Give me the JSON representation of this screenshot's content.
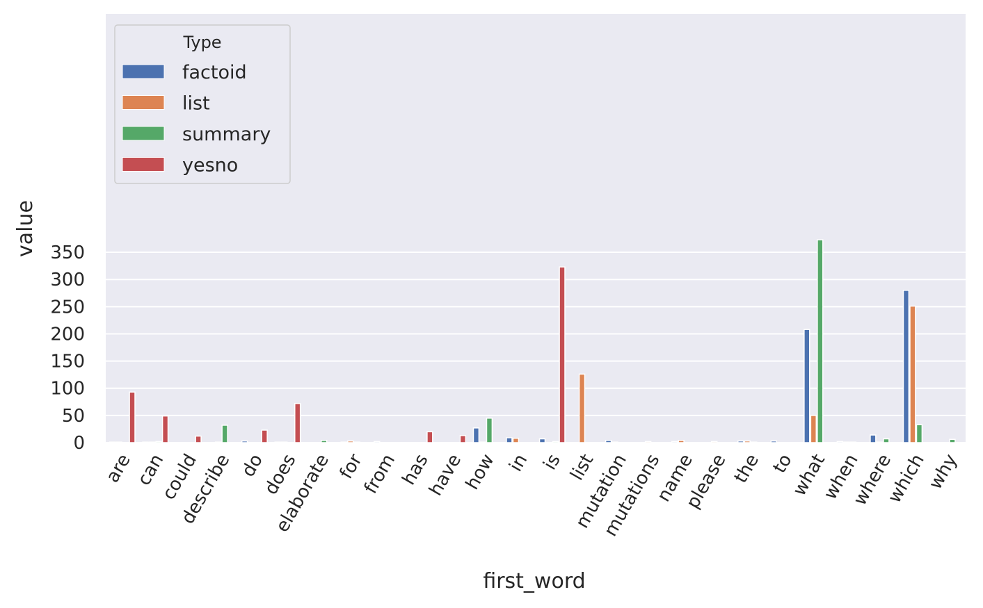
{
  "chart_data": {
    "type": "bar",
    "xlabel": "first_word",
    "ylabel": "value",
    "ylim": [
      0,
      380
    ],
    "yticks": [
      0,
      50,
      100,
      150,
      200,
      250,
      300,
      350
    ],
    "grid": true,
    "legend": {
      "title": "Type",
      "placement": "top-left"
    },
    "categories": [
      "are",
      "can",
      "could",
      "describe",
      "do",
      "does",
      "elaborate",
      "for",
      "from",
      "has",
      "have",
      "how",
      "in",
      "is",
      "list",
      "mutation",
      "mutations",
      "name",
      "please",
      "the",
      "to",
      "what",
      "when",
      "where",
      "which",
      "why"
    ],
    "series": [
      {
        "name": "factoid",
        "color": "#4c72b0",
        "values": [
          1,
          1,
          0,
          0,
          3,
          1,
          0,
          1,
          2,
          0,
          0,
          27,
          9,
          7,
          0,
          4,
          0,
          2,
          0,
          3,
          3,
          208,
          2,
          14,
          280,
          0
        ]
      },
      {
        "name": "list",
        "color": "#dd8452",
        "values": [
          1,
          1,
          0,
          1,
          0,
          1,
          0,
          3,
          0,
          0,
          0,
          1,
          8,
          0,
          126,
          1,
          2,
          4,
          2,
          3,
          0,
          50,
          1,
          1,
          251,
          0
        ]
      },
      {
        "name": "summary",
        "color": "#55a868",
        "values": [
          0,
          2,
          0,
          32,
          0,
          0,
          4,
          1,
          0,
          0,
          0,
          45,
          0,
          2,
          0,
          0,
          0,
          0,
          0,
          1,
          0,
          373,
          1,
          7,
          33,
          6
        ]
      },
      {
        "name": "yesno",
        "color": "#c44e52",
        "values": [
          93,
          49,
          12,
          0,
          23,
          72,
          0,
          0,
          0,
          20,
          13,
          0,
          0,
          323,
          0,
          0,
          0,
          0,
          0,
          0,
          0,
          0,
          0,
          0,
          0,
          0
        ]
      }
    ]
  }
}
